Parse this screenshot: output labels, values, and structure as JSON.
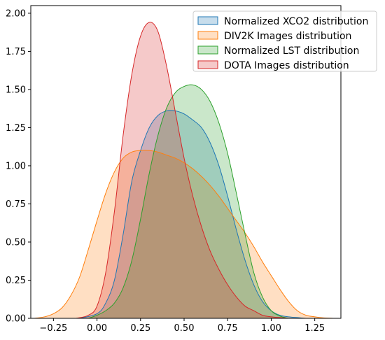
{
  "chart_data": {
    "type": "area",
    "title": "",
    "xlabel": "",
    "ylabel": "",
    "xlim": [
      -0.38,
      1.4
    ],
    "ylim": [
      0,
      2.05
    ],
    "x_ticks": [
      -0.25,
      0.0,
      0.25,
      0.5,
      0.75,
      1.0,
      1.25
    ],
    "x_tick_labels": [
      "−0.25",
      "0.00",
      "0.25",
      "0.50",
      "0.75",
      "1.00",
      "1.25"
    ],
    "y_ticks": [
      0.0,
      0.25,
      0.5,
      0.75,
      1.0,
      1.25,
      1.5,
      1.75,
      2.0
    ],
    "y_tick_labels": [
      "0.00",
      "0.25",
      "0.50",
      "0.75",
      "1.00",
      "1.25",
      "1.50",
      "1.75",
      "2.00"
    ],
    "grid": false,
    "legend_position": "top-right",
    "series": [
      {
        "name": "Normalized XCO2 distribution",
        "stroke": "#1f77b4",
        "fill": "#1f77b4",
        "x": [
          -0.1,
          0.0,
          0.05,
          0.1,
          0.15,
          0.2,
          0.25,
          0.3,
          0.35,
          0.4,
          0.45,
          0.5,
          0.55,
          0.6,
          0.65,
          0.7,
          0.75,
          0.8,
          0.85,
          0.9,
          0.95,
          1.0,
          1.05,
          1.1,
          1.15,
          1.2
        ],
        "y": [
          0.0,
          0.03,
          0.1,
          0.25,
          0.55,
          0.9,
          1.1,
          1.25,
          1.33,
          1.36,
          1.36,
          1.34,
          1.3,
          1.25,
          1.15,
          1.0,
          0.8,
          0.58,
          0.38,
          0.22,
          0.11,
          0.05,
          0.02,
          0.01,
          0.005,
          0.0
        ]
      },
      {
        "name": "DIV2K Images distribution",
        "stroke": "#ff7f0e",
        "fill": "#ff7f0e",
        "x": [
          -0.36,
          -0.3,
          -0.25,
          -0.2,
          -0.15,
          -0.1,
          -0.05,
          0.0,
          0.05,
          0.1,
          0.15,
          0.2,
          0.25,
          0.3,
          0.35,
          0.4,
          0.45,
          0.5,
          0.55,
          0.6,
          0.65,
          0.7,
          0.75,
          0.8,
          0.85,
          0.9,
          0.95,
          1.0,
          1.05,
          1.1,
          1.15,
          1.2,
          1.25,
          1.3,
          1.36
        ],
        "y": [
          0.0,
          0.01,
          0.03,
          0.07,
          0.15,
          0.27,
          0.45,
          0.64,
          0.82,
          0.96,
          1.05,
          1.09,
          1.1,
          1.1,
          1.09,
          1.07,
          1.05,
          1.02,
          0.98,
          0.93,
          0.87,
          0.8,
          0.72,
          0.64,
          0.56,
          0.47,
          0.37,
          0.28,
          0.19,
          0.11,
          0.05,
          0.02,
          0.01,
          0.003,
          0.0
        ]
      },
      {
        "name": "Normalized LST distribution",
        "stroke": "#2ca02c",
        "fill": "#2ca02c",
        "x": [
          -0.05,
          0.0,
          0.05,
          0.1,
          0.15,
          0.2,
          0.25,
          0.3,
          0.35,
          0.4,
          0.45,
          0.5,
          0.55,
          0.6,
          0.65,
          0.7,
          0.75,
          0.8,
          0.85,
          0.9,
          0.95,
          1.0,
          1.05,
          1.1
        ],
        "y": [
          0.0,
          0.02,
          0.05,
          0.1,
          0.2,
          0.38,
          0.65,
          0.95,
          1.2,
          1.38,
          1.48,
          1.52,
          1.53,
          1.5,
          1.42,
          1.28,
          1.08,
          0.82,
          0.55,
          0.3,
          0.14,
          0.05,
          0.015,
          0.0
        ]
      },
      {
        "name": "DOTA Images distribution",
        "stroke": "#d62728",
        "fill": "#d62728",
        "x": [
          -0.12,
          -0.05,
          0.0,
          0.05,
          0.1,
          0.15,
          0.2,
          0.25,
          0.3,
          0.35,
          0.4,
          0.45,
          0.5,
          0.55,
          0.6,
          0.65,
          0.7,
          0.75,
          0.8,
          0.85,
          0.9,
          0.95,
          1.0,
          1.05,
          1.1
        ],
        "y": [
          0.0,
          0.02,
          0.08,
          0.3,
          0.7,
          1.2,
          1.6,
          1.85,
          1.94,
          1.88,
          1.65,
          1.35,
          1.05,
          0.8,
          0.6,
          0.44,
          0.32,
          0.22,
          0.14,
          0.08,
          0.05,
          0.02,
          0.01,
          0.005,
          0.0
        ]
      }
    ]
  }
}
